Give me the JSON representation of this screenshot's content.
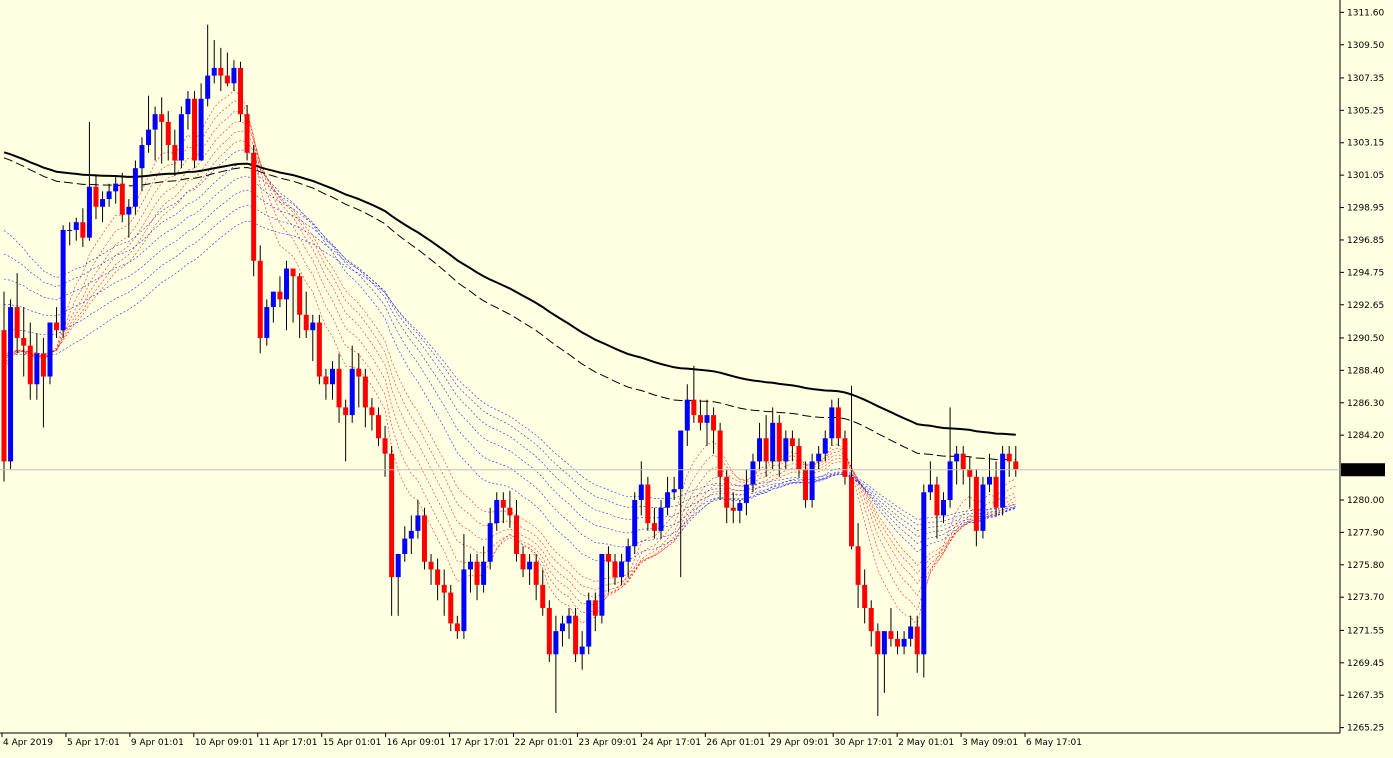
{
  "chart_data": {
    "type": "candlestick",
    "title": "",
    "xlabel": "",
    "ylabel": "",
    "ylim": [
      1264.9,
      1312.4
    ],
    "grid": false,
    "legend": "none",
    "y_ticks": [
      "1311.60",
      "1309.50",
      "1307.35",
      "1305.25",
      "1303.15",
      "1301.05",
      "1298.95",
      "1296.85",
      "1294.75",
      "1292.65",
      "1290.50",
      "1288.40",
      "1286.30",
      "1284.20",
      "1280.00",
      "1277.90",
      "1275.80",
      "1273.70",
      "1271.55",
      "1269.45",
      "1267.35",
      "1265.25"
    ],
    "x_ticks": [
      "4 Apr 2019",
      "5 Apr 17:01",
      "9 Apr 01:01",
      "10 Apr 09:01",
      "11 Apr 17:01",
      "15 Apr 01:01",
      "16 Apr 09:01",
      "17 Apr 17:01",
      "22 Apr 01:01",
      "23 Apr 09:01",
      "24 Apr 17:01",
      "26 Apr 01:01",
      "29 Apr 09:01",
      "30 Apr 17:01",
      "2 May 01:01",
      "3 May 09:01",
      "6 May 17:01"
    ],
    "current_price": "1281.96",
    "colors": {
      "background": "#ffffe1",
      "bull": "#0000ff",
      "bear": "#ff0000",
      "wick": "#000000",
      "long_ma": "#000000",
      "short_ma": "#ff0000",
      "mid_ma": "#0000ff",
      "price_line": "#c0c0c0",
      "price_label_bg": "#000000",
      "price_label_text": "#ffffff"
    },
    "candles": [
      {
        "o": 1291.0,
        "h": 1293.5,
        "l": 1281.2,
        "c": 1282.5
      },
      {
        "o": 1282.5,
        "h": 1293.0,
        "l": 1282.0,
        "c": 1292.5
      },
      {
        "o": 1292.5,
        "h": 1294.7,
        "l": 1289.5,
        "c": 1290.5
      },
      {
        "o": 1290.5,
        "h": 1292.5,
        "l": 1288.0,
        "c": 1290.0
      },
      {
        "o": 1290.0,
        "h": 1291.5,
        "l": 1286.5,
        "c": 1287.5
      },
      {
        "o": 1287.5,
        "h": 1290.8,
        "l": 1286.5,
        "c": 1289.5
      },
      {
        "o": 1289.5,
        "h": 1290.5,
        "l": 1284.7,
        "c": 1288.0
      },
      {
        "o": 1288.0,
        "h": 1291.5,
        "l": 1287.5,
        "c": 1291.5
      },
      {
        "o": 1291.5,
        "h": 1292.5,
        "l": 1290.5,
        "c": 1291.0
      },
      {
        "o": 1291.0,
        "h": 1297.8,
        "l": 1290.5,
        "c": 1297.5
      },
      {
        "o": 1297.5,
        "h": 1298.0,
        "l": 1296.5,
        "c": 1297.5
      },
      {
        "o": 1297.5,
        "h": 1298.3,
        "l": 1296.8,
        "c": 1298.0
      },
      {
        "o": 1298.0,
        "h": 1298.9,
        "l": 1296.4,
        "c": 1297.0
      },
      {
        "o": 1297.0,
        "h": 1304.5,
        "l": 1296.8,
        "c": 1300.3
      },
      {
        "o": 1300.3,
        "h": 1301.1,
        "l": 1298.2,
        "c": 1299.0
      },
      {
        "o": 1299.0,
        "h": 1300.0,
        "l": 1298.0,
        "c": 1299.5
      },
      {
        "o": 1299.5,
        "h": 1300.5,
        "l": 1299.0,
        "c": 1300.0
      },
      {
        "o": 1300.0,
        "h": 1301.0,
        "l": 1299.2,
        "c": 1300.5
      },
      {
        "o": 1300.5,
        "h": 1301.2,
        "l": 1298.0,
        "c": 1298.5
      },
      {
        "o": 1298.5,
        "h": 1299.5,
        "l": 1297.0,
        "c": 1299.0
      },
      {
        "o": 1299.0,
        "h": 1302.0,
        "l": 1298.5,
        "c": 1301.5
      },
      {
        "o": 1301.5,
        "h": 1303.5,
        "l": 1300.0,
        "c": 1303.0
      },
      {
        "o": 1303.0,
        "h": 1306.2,
        "l": 1302.5,
        "c": 1304.0
      },
      {
        "o": 1304.0,
        "h": 1305.5,
        "l": 1302.0,
        "c": 1305.0
      },
      {
        "o": 1305.0,
        "h": 1306.1,
        "l": 1301.8,
        "c": 1304.5
      },
      {
        "o": 1304.5,
        "h": 1305.2,
        "l": 1302.0,
        "c": 1303.0
      },
      {
        "o": 1303.0,
        "h": 1304.0,
        "l": 1301.0,
        "c": 1302.0
      },
      {
        "o": 1302.0,
        "h": 1305.5,
        "l": 1301.5,
        "c": 1305.0
      },
      {
        "o": 1305.0,
        "h": 1306.5,
        "l": 1304.0,
        "c": 1306.0
      },
      {
        "o": 1306.0,
        "h": 1306.5,
        "l": 1301.5,
        "c": 1302.0
      },
      {
        "o": 1302.0,
        "h": 1307.0,
        "l": 1302.0,
        "c": 1306.0
      },
      {
        "o": 1306.0,
        "h": 1310.8,
        "l": 1305.5,
        "c": 1307.5
      },
      {
        "o": 1307.5,
        "h": 1309.8,
        "l": 1307.0,
        "c": 1308.0
      },
      {
        "o": 1308.0,
        "h": 1309.3,
        "l": 1306.5,
        "c": 1307.5
      },
      {
        "o": 1307.5,
        "h": 1309.0,
        "l": 1306.8,
        "c": 1307.0
      },
      {
        "o": 1307.0,
        "h": 1308.5,
        "l": 1306.5,
        "c": 1308.0
      },
      {
        "o": 1308.0,
        "h": 1308.4,
        "l": 1304.5,
        "c": 1305.0
      },
      {
        "o": 1305.0,
        "h": 1305.6,
        "l": 1302.0,
        "c": 1302.5
      },
      {
        "o": 1302.5,
        "h": 1303.0,
        "l": 1294.5,
        "c": 1295.5
      },
      {
        "o": 1295.5,
        "h": 1296.5,
        "l": 1289.5,
        "c": 1290.5
      },
      {
        "o": 1290.5,
        "h": 1293.0,
        "l": 1290.0,
        "c": 1292.5
      },
      {
        "o": 1292.5,
        "h": 1293.5,
        "l": 1291.5,
        "c": 1293.5
      },
      {
        "o": 1293.5,
        "h": 1294.5,
        "l": 1292.5,
        "c": 1293.0
      },
      {
        "o": 1293.0,
        "h": 1295.5,
        "l": 1291.0,
        "c": 1295.0
      },
      {
        "o": 1295.0,
        "h": 1295.0,
        "l": 1291.5,
        "c": 1294.5
      },
      {
        "o": 1294.5,
        "h": 1294.7,
        "l": 1290.5,
        "c": 1292.0
      },
      {
        "o": 1292.0,
        "h": 1293.5,
        "l": 1290.5,
        "c": 1291.0
      },
      {
        "o": 1291.0,
        "h": 1292.0,
        "l": 1289.0,
        "c": 1291.5
      },
      {
        "o": 1291.5,
        "h": 1292.0,
        "l": 1287.5,
        "c": 1288.0
      },
      {
        "o": 1288.0,
        "h": 1288.5,
        "l": 1286.5,
        "c": 1287.5
      },
      {
        "o": 1287.5,
        "h": 1289.0,
        "l": 1286.5,
        "c": 1288.5
      },
      {
        "o": 1288.5,
        "h": 1289.5,
        "l": 1285.0,
        "c": 1286.0
      },
      {
        "o": 1286.0,
        "h": 1286.5,
        "l": 1282.5,
        "c": 1285.5
      },
      {
        "o": 1285.5,
        "h": 1290.0,
        "l": 1285.0,
        "c": 1288.5
      },
      {
        "o": 1288.5,
        "h": 1289.5,
        "l": 1286.0,
        "c": 1288.0
      },
      {
        "o": 1288.0,
        "h": 1288.5,
        "l": 1284.7,
        "c": 1286.0
      },
      {
        "o": 1286.0,
        "h": 1286.6,
        "l": 1284.5,
        "c": 1285.5
      },
      {
        "o": 1285.5,
        "h": 1286.0,
        "l": 1283.5,
        "c": 1284.0
      },
      {
        "o": 1284.0,
        "h": 1284.8,
        "l": 1281.5,
        "c": 1283.0
      },
      {
        "o": 1283.0,
        "h": 1283.5,
        "l": 1272.5,
        "c": 1275.0
      },
      {
        "o": 1275.0,
        "h": 1276.5,
        "l": 1272.5,
        "c": 1276.5
      },
      {
        "o": 1276.5,
        "h": 1278.3,
        "l": 1276.0,
        "c": 1277.5
      },
      {
        "o": 1277.5,
        "h": 1279.0,
        "l": 1276.5,
        "c": 1278.0
      },
      {
        "o": 1278.0,
        "h": 1280.0,
        "l": 1277.5,
        "c": 1279.0
      },
      {
        "o": 1279.0,
        "h": 1279.5,
        "l": 1275.5,
        "c": 1276.0
      },
      {
        "o": 1276.0,
        "h": 1276.5,
        "l": 1274.5,
        "c": 1275.5
      },
      {
        "o": 1275.5,
        "h": 1276.2,
        "l": 1273.5,
        "c": 1274.5
      },
      {
        "o": 1274.5,
        "h": 1275.5,
        "l": 1272.5,
        "c": 1274.0
      },
      {
        "o": 1274.0,
        "h": 1274.5,
        "l": 1271.5,
        "c": 1272.0
      },
      {
        "o": 1272.0,
        "h": 1272.5,
        "l": 1271.0,
        "c": 1271.5
      },
      {
        "o": 1271.5,
        "h": 1277.8,
        "l": 1271.0,
        "c": 1275.5
      },
      {
        "o": 1275.5,
        "h": 1276.5,
        "l": 1274.0,
        "c": 1276.0
      },
      {
        "o": 1276.0,
        "h": 1276.5,
        "l": 1273.5,
        "c": 1274.5
      },
      {
        "o": 1274.5,
        "h": 1277.0,
        "l": 1274.0,
        "c": 1276.0
      },
      {
        "o": 1276.0,
        "h": 1279.5,
        "l": 1275.5,
        "c": 1278.5
      },
      {
        "o": 1278.5,
        "h": 1280.5,
        "l": 1278.0,
        "c": 1280.0
      },
      {
        "o": 1280.0,
        "h": 1280.5,
        "l": 1278.5,
        "c": 1279.5
      },
      {
        "o": 1279.5,
        "h": 1280.6,
        "l": 1278.2,
        "c": 1279.0
      },
      {
        "o": 1279.0,
        "h": 1280.0,
        "l": 1276.0,
        "c": 1276.5
      },
      {
        "o": 1276.5,
        "h": 1277.0,
        "l": 1275.0,
        "c": 1275.5
      },
      {
        "o": 1275.5,
        "h": 1276.5,
        "l": 1274.5,
        "c": 1276.0
      },
      {
        "o": 1276.0,
        "h": 1276.5,
        "l": 1273.5,
        "c": 1274.5
      },
      {
        "o": 1274.5,
        "h": 1275.5,
        "l": 1272.5,
        "c": 1273.0
      },
      {
        "o": 1273.0,
        "h": 1273.5,
        "l": 1269.5,
        "c": 1270.0
      },
      {
        "o": 1270.0,
        "h": 1272.5,
        "l": 1266.2,
        "c": 1271.5
      },
      {
        "o": 1271.5,
        "h": 1272.5,
        "l": 1270.5,
        "c": 1272.0
      },
      {
        "o": 1272.0,
        "h": 1273.0,
        "l": 1271.0,
        "c": 1272.5
      },
      {
        "o": 1272.5,
        "h": 1273.0,
        "l": 1269.5,
        "c": 1270.0
      },
      {
        "o": 1270.0,
        "h": 1271.5,
        "l": 1269.0,
        "c": 1270.5
      },
      {
        "o": 1270.5,
        "h": 1274.0,
        "l": 1270.0,
        "c": 1273.5
      },
      {
        "o": 1273.5,
        "h": 1274.0,
        "l": 1271.5,
        "c": 1272.5
      },
      {
        "o": 1272.5,
        "h": 1276.5,
        "l": 1272.0,
        "c": 1276.5
      },
      {
        "o": 1276.5,
        "h": 1277.0,
        "l": 1274.0,
        "c": 1276.0
      },
      {
        "o": 1276.0,
        "h": 1276.5,
        "l": 1274.5,
        "c": 1275.0
      },
      {
        "o": 1275.0,
        "h": 1276.5,
        "l": 1274.5,
        "c": 1276.0
      },
      {
        "o": 1276.0,
        "h": 1277.5,
        "l": 1275.0,
        "c": 1277.0
      },
      {
        "o": 1277.0,
        "h": 1280.5,
        "l": 1276.5,
        "c": 1280.0
      },
      {
        "o": 1280.0,
        "h": 1282.5,
        "l": 1279.0,
        "c": 1281.0
      },
      {
        "o": 1281.0,
        "h": 1281.5,
        "l": 1278.0,
        "c": 1278.5
      },
      {
        "o": 1278.5,
        "h": 1279.5,
        "l": 1277.5,
        "c": 1278.0
      },
      {
        "o": 1278.0,
        "h": 1280.0,
        "l": 1277.5,
        "c": 1279.5
      },
      {
        "o": 1279.5,
        "h": 1281.5,
        "l": 1279.0,
        "c": 1280.5
      },
      {
        "o": 1280.5,
        "h": 1281.5,
        "l": 1280.0,
        "c": 1280.7
      },
      {
        "o": 1280.7,
        "h": 1284.5,
        "l": 1275.0,
        "c": 1284.5
      },
      {
        "o": 1284.5,
        "h": 1287.5,
        "l": 1283.5,
        "c": 1286.5
      },
      {
        "o": 1286.5,
        "h": 1288.7,
        "l": 1285.0,
        "c": 1285.5
      },
      {
        "o": 1285.5,
        "h": 1286.5,
        "l": 1284.5,
        "c": 1285.0
      },
      {
        "o": 1285.0,
        "h": 1286.5,
        "l": 1283.5,
        "c": 1285.5
      },
      {
        "o": 1285.5,
        "h": 1286.0,
        "l": 1283.0,
        "c": 1284.5
      },
      {
        "o": 1284.5,
        "h": 1285.0,
        "l": 1280.0,
        "c": 1281.5
      },
      {
        "o": 1281.5,
        "h": 1282.0,
        "l": 1278.5,
        "c": 1279.5
      },
      {
        "o": 1279.5,
        "h": 1280.5,
        "l": 1278.5,
        "c": 1279.3
      },
      {
        "o": 1279.3,
        "h": 1280.0,
        "l": 1278.5,
        "c": 1279.8
      },
      {
        "o": 1279.8,
        "h": 1282.0,
        "l": 1279.0,
        "c": 1281.0
      },
      {
        "o": 1281.0,
        "h": 1283.0,
        "l": 1280.5,
        "c": 1282.5
      },
      {
        "o": 1282.5,
        "h": 1285.0,
        "l": 1282.0,
        "c": 1284.0
      },
      {
        "o": 1284.0,
        "h": 1285.5,
        "l": 1281.5,
        "c": 1282.5
      },
      {
        "o": 1282.5,
        "h": 1286.0,
        "l": 1282.0,
        "c": 1285.0
      },
      {
        "o": 1285.0,
        "h": 1285.5,
        "l": 1281.5,
        "c": 1282.5
      },
      {
        "o": 1282.5,
        "h": 1284.5,
        "l": 1282.0,
        "c": 1284.0
      },
      {
        "o": 1284.0,
        "h": 1284.5,
        "l": 1282.5,
        "c": 1283.5
      },
      {
        "o": 1283.5,
        "h": 1284.0,
        "l": 1281.5,
        "c": 1282.0
      },
      {
        "o": 1282.0,
        "h": 1282.5,
        "l": 1279.5,
        "c": 1280.0
      },
      {
        "o": 1280.0,
        "h": 1283.0,
        "l": 1279.5,
        "c": 1282.5
      },
      {
        "o": 1282.5,
        "h": 1283.5,
        "l": 1282.0,
        "c": 1283.0
      },
      {
        "o": 1283.0,
        "h": 1284.5,
        "l": 1282.5,
        "c": 1284.0
      },
      {
        "o": 1284.0,
        "h": 1286.5,
        "l": 1283.5,
        "c": 1286.0
      },
      {
        "o": 1286.0,
        "h": 1286.6,
        "l": 1283.5,
        "c": 1284.0
      },
      {
        "o": 1284.0,
        "h": 1284.5,
        "l": 1281.0,
        "c": 1281.5
      },
      {
        "o": 1281.5,
        "h": 1287.4,
        "l": 1276.8,
        "c": 1277.0
      },
      {
        "o": 1277.0,
        "h": 1278.5,
        "l": 1273.0,
        "c": 1274.5
      },
      {
        "o": 1274.5,
        "h": 1275.5,
        "l": 1272.0,
        "c": 1273.0
      },
      {
        "o": 1273.0,
        "h": 1273.5,
        "l": 1270.5,
        "c": 1271.5
      },
      {
        "o": 1271.5,
        "h": 1272.0,
        "l": 1266.0,
        "c": 1270.0
      },
      {
        "o": 1270.0,
        "h": 1271.5,
        "l": 1267.5,
        "c": 1271.5
      },
      {
        "o": 1271.5,
        "h": 1273.0,
        "l": 1270.5,
        "c": 1271.0
      },
      {
        "o": 1271.0,
        "h": 1271.5,
        "l": 1270.0,
        "c": 1270.5
      },
      {
        "o": 1270.5,
        "h": 1271.5,
        "l": 1270.0,
        "c": 1271.0
      },
      {
        "o": 1271.0,
        "h": 1272.5,
        "l": 1270.5,
        "c": 1271.8
      },
      {
        "o": 1271.8,
        "h": 1272.5,
        "l": 1268.8,
        "c": 1270.0
      },
      {
        "o": 1270.0,
        "h": 1281.0,
        "l": 1268.5,
        "c": 1280.5
      },
      {
        "o": 1280.5,
        "h": 1282.5,
        "l": 1280.0,
        "c": 1281.0
      },
      {
        "o": 1281.0,
        "h": 1281.5,
        "l": 1277.5,
        "c": 1279.0
      },
      {
        "o": 1279.0,
        "h": 1280.5,
        "l": 1278.5,
        "c": 1280.0
      },
      {
        "o": 1280.0,
        "h": 1286.0,
        "l": 1279.5,
        "c": 1282.5
      },
      {
        "o": 1282.5,
        "h": 1283.5,
        "l": 1281.0,
        "c": 1283.0
      },
      {
        "o": 1283.0,
        "h": 1283.5,
        "l": 1281.0,
        "c": 1282.0
      },
      {
        "o": 1282.0,
        "h": 1282.8,
        "l": 1279.5,
        "c": 1281.5
      },
      {
        "o": 1281.5,
        "h": 1282.0,
        "l": 1277.0,
        "c": 1278.0
      },
      {
        "o": 1278.0,
        "h": 1281.5,
        "l": 1277.5,
        "c": 1281.0
      },
      {
        "o": 1281.0,
        "h": 1283.0,
        "l": 1280.5,
        "c": 1281.5
      },
      {
        "o": 1281.5,
        "h": 1282.5,
        "l": 1279.0,
        "c": 1279.5
      },
      {
        "o": 1279.5,
        "h": 1283.5,
        "l": 1279.0,
        "c": 1283.0
      },
      {
        "o": 1283.0,
        "h": 1283.5,
        "l": 1281.5,
        "c": 1282.5
      },
      {
        "o": 1282.5,
        "h": 1283.5,
        "l": 1281.5,
        "c": 1282.0
      }
    ]
  }
}
